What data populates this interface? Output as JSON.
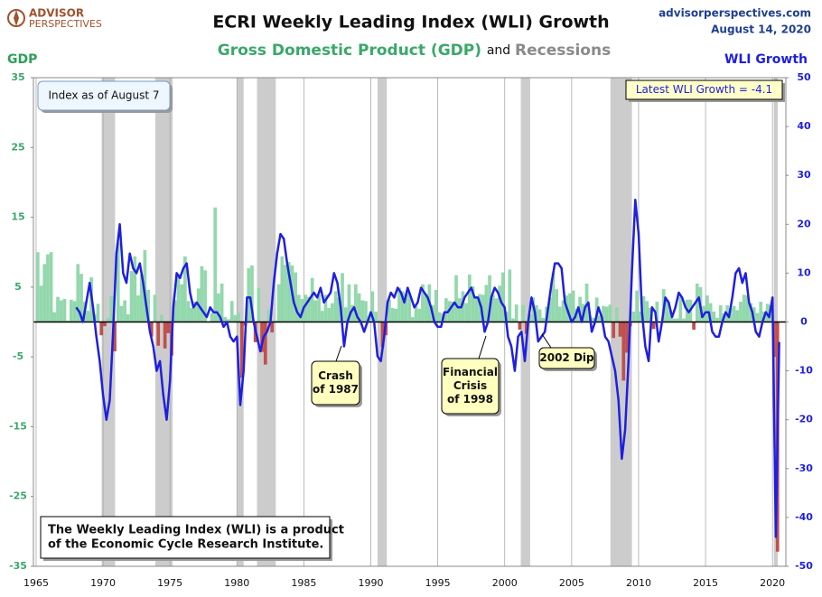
{
  "header": {
    "logo": [
      "ADVISOR",
      "PERSPECTIVES"
    ],
    "source": "advisorperspectives.com",
    "date": "August 14, 2020"
  },
  "chart_data": {
    "type": "bar-line",
    "title": "ECRI Weekly Leading Index (WLI) Growth",
    "subtitle": [
      "Gross Domestic Product (GDP)",
      "and",
      "Recessions"
    ],
    "y_label": "GDP",
    "y2_label": "WLI Growth",
    "xlim": [
      1964.8,
      2021
    ],
    "xticks": [
      1965,
      1970,
      1975,
      1980,
      1985,
      1990,
      1995,
      2000,
      2005,
      2010,
      2015,
      2020
    ],
    "ylim": [
      -35,
      35
    ],
    "yticks": [
      35,
      25,
      15,
      5,
      -5,
      -15,
      -25,
      -35
    ],
    "y2lim": [
      -50,
      50
    ],
    "y2ticks": [
      50,
      40,
      30,
      20,
      10,
      0,
      -10,
      -20,
      -30,
      -40,
      -50
    ],
    "grid": "x",
    "recession_color": "#cccccc",
    "recessions": [
      [
        1969.9,
        1970.9
      ],
      [
        1973.9,
        1975.2
      ],
      [
        1980.0,
        1980.5
      ],
      [
        1981.5,
        1982.9
      ],
      [
        1990.5,
        1991.2
      ],
      [
        2001.2,
        2001.9
      ],
      [
        2007.9,
        2009.5
      ],
      [
        2020.1,
        2020.4
      ]
    ],
    "x": [
      1965,
      1965.25,
      1965.5,
      1965.75,
      1966,
      1966.25,
      1966.5,
      1966.75,
      1967,
      1967.25,
      1967.5,
      1967.75,
      1968,
      1968.25,
      1968.5,
      1968.75,
      1969,
      1969.25,
      1969.5,
      1969.75,
      1970,
      1970.25,
      1970.5,
      1970.75,
      1971,
      1971.25,
      1971.5,
      1971.75,
      1972,
      1972.25,
      1972.5,
      1972.75,
      1973,
      1973.25,
      1973.5,
      1973.75,
      1974,
      1974.25,
      1974.5,
      1974.75,
      1975,
      1975.25,
      1975.5,
      1975.75,
      1976,
      1976.25,
      1976.5,
      1976.75,
      1977,
      1977.25,
      1977.5,
      1977.75,
      1978,
      1978.25,
      1978.5,
      1978.75,
      1979,
      1979.25,
      1979.5,
      1979.75,
      1980,
      1980.25,
      1980.5,
      1980.75,
      1981,
      1981.25,
      1981.5,
      1981.75,
      1982,
      1982.25,
      1982.5,
      1982.75,
      1983,
      1983.25,
      1983.5,
      1983.75,
      1984,
      1984.25,
      1984.5,
      1984.75,
      1985,
      1985.25,
      1985.5,
      1985.75,
      1986,
      1986.25,
      1986.5,
      1986.75,
      1987,
      1987.25,
      1987.5,
      1987.75,
      1988,
      1988.25,
      1988.5,
      1988.75,
      1989,
      1989.25,
      1989.5,
      1989.75,
      1990,
      1990.25,
      1990.5,
      1990.75,
      1991,
      1991.25,
      1991.5,
      1991.75,
      1992,
      1992.25,
      1992.5,
      1992.75,
      1993,
      1993.25,
      1993.5,
      1993.75,
      1994,
      1994.25,
      1994.5,
      1994.75,
      1995,
      1995.25,
      1995.5,
      1995.75,
      1996,
      1996.25,
      1996.5,
      1996.75,
      1997,
      1997.25,
      1997.5,
      1997.75,
      1998,
      1998.25,
      1998.5,
      1998.75,
      1999,
      1999.25,
      1999.5,
      1999.75,
      2000,
      2000.25,
      2000.5,
      2000.75,
      2001,
      2001.25,
      2001.5,
      2001.75,
      2002,
      2002.25,
      2002.5,
      2002.75,
      2003,
      2003.25,
      2003.5,
      2003.75,
      2004,
      2004.25,
      2004.5,
      2004.75,
      2005,
      2005.25,
      2005.5,
      2005.75,
      2006,
      2006.25,
      2006.5,
      2006.75,
      2007,
      2007.25,
      2007.5,
      2007.75,
      2008,
      2008.25,
      2008.5,
      2008.75,
      2009,
      2009.25,
      2009.5,
      2009.75,
      2010,
      2010.25,
      2010.5,
      2010.75,
      2011,
      2011.25,
      2011.5,
      2011.75,
      2012,
      2012.25,
      2012.5,
      2012.75,
      2013,
      2013.25,
      2013.5,
      2013.75,
      2014,
      2014.25,
      2014.5,
      2014.75,
      2015,
      2015.25,
      2015.5,
      2015.75,
      2016,
      2016.25,
      2016.5,
      2016.75,
      2017,
      2017.25,
      2017.5,
      2017.75,
      2018,
      2018.25,
      2018.5,
      2018.75,
      2019,
      2019.25,
      2019.5,
      2019.75,
      2020,
      2020.25,
      2020.5
    ],
    "series": [
      {
        "name": "GDP",
        "type": "bar",
        "color": "#93d8ac",
        "negative_color": "#c0504d",
        "values": [
          10.0,
          5.2,
          8.3,
          9.7,
          10.0,
          1.4,
          3.6,
          3.1,
          3.3,
          0.2,
          3.2,
          3.0,
          8.3,
          6.9,
          2.9,
          1.6,
          6.4,
          1.1,
          2.6,
          -1.9,
          -0.6,
          0.6,
          3.7,
          -4.2,
          11.3,
          2.3,
          3.1,
          1.1,
          7.3,
          9.4,
          3.8,
          6.8,
          10.3,
          4.6,
          -2.1,
          3.9,
          -3.4,
          1.0,
          -3.8,
          -1.6,
          -4.8,
          3.1,
          6.9,
          5.4,
          9.4,
          3.0,
          2.0,
          2.9,
          4.8,
          8.0,
          7.4,
          0.0,
          1.3,
          16.4,
          4.1,
          5.5,
          0.7,
          0.4,
          3.0,
          1.0,
          1.3,
          -8.0,
          -0.5,
          7.7,
          8.1,
          -2.9,
          4.9,
          -4.3,
          -6.1,
          1.8,
          -1.5,
          0.2,
          5.4,
          9.4,
          8.2,
          8.6,
          8.1,
          7.1,
          3.9,
          3.3,
          3.9,
          3.6,
          6.3,
          3.1,
          3.9,
          1.6,
          3.9,
          2.0,
          2.7,
          4.4,
          3.5,
          7.0,
          2.1,
          5.4,
          2.4,
          5.4,
          4.1,
          3.1,
          3.0,
          0.8,
          4.4,
          1.5,
          0.3,
          -3.6,
          -1.9,
          3.2,
          2.0,
          1.9,
          4.9,
          4.4,
          4.0,
          4.2,
          0.7,
          2.3,
          1.9,
          5.4,
          4.0,
          5.4,
          2.4,
          4.6,
          1.4,
          1.2,
          3.4,
          3.0,
          2.9,
          6.7,
          3.4,
          4.4,
          2.7,
          6.8,
          5.1,
          3.4,
          4.0,
          3.9,
          5.3,
          6.7,
          3.9,
          3.4,
          5.2,
          7.1,
          1.5,
          7.5,
          0.5,
          2.5,
          -1.1,
          2.4,
          -1.7,
          1.1,
          3.5,
          2.4,
          1.8,
          0.6,
          2.2,
          3.5,
          7.0,
          4.7,
          2.2,
          3.1,
          3.8,
          4.1,
          4.5,
          1.9,
          3.6,
          2.6,
          5.5,
          0.9,
          0.6,
          3.5,
          0.9,
          2.3,
          2.2,
          2.5,
          -2.3,
          2.1,
          -2.1,
          -8.4,
          -4.4,
          -0.6,
          1.5,
          4.5,
          1.5,
          3.7,
          3.0,
          2.0,
          -1.0,
          2.9,
          -0.1,
          4.7,
          3.2,
          1.7,
          0.5,
          0.5,
          3.6,
          0.5,
          3.2,
          3.2,
          -1.1,
          5.5,
          5.0,
          2.3,
          3.8,
          2.7,
          1.5,
          0.6,
          2.4,
          1.2,
          2.4,
          2.0,
          2.3,
          1.7,
          2.9,
          3.9,
          3.8,
          2.7,
          2.1,
          1.3,
          2.9,
          1.5,
          2.6,
          2.4,
          -5.0,
          -32.9,
          null
        ]
      },
      {
        "name": "WLI Growth",
        "type": "line",
        "axis": "y2",
        "color": "#1f1fe0",
        "values": [
          null,
          null,
          null,
          null,
          null,
          null,
          null,
          null,
          null,
          null,
          null,
          null,
          3,
          2,
          0,
          4,
          8,
          3,
          -3,
          -8,
          -15,
          -20,
          -16,
          -2,
          14,
          20,
          10,
          8,
          14,
          11,
          10,
          12,
          8,
          3,
          -2,
          -5,
          -10,
          -8,
          -15,
          -20,
          -12,
          3,
          10,
          9,
          11,
          12,
          6,
          3,
          4,
          3,
          2,
          1,
          3,
          2,
          2,
          1,
          -1,
          0,
          -3,
          -4,
          -3,
          -17,
          -10,
          5,
          5,
          0,
          -3,
          -6,
          -3,
          -2,
          0,
          8,
          14,
          18,
          17,
          12,
          8,
          4,
          2,
          1,
          3,
          4,
          5,
          6,
          5,
          7,
          4,
          5,
          6,
          10,
          8,
          3,
          -5,
          0,
          2,
          3,
          1,
          0,
          -2,
          0,
          2,
          0,
          -7,
          -8,
          -3,
          4,
          6,
          5,
          7,
          6,
          4,
          7,
          5,
          3,
          4,
          7,
          6,
          5,
          3,
          0,
          -1,
          -1,
          2,
          2,
          3,
          4,
          3,
          3,
          5,
          6,
          7,
          5,
          5,
          3,
          -2,
          0,
          5,
          7,
          6,
          4,
          3,
          -3,
          -5,
          -10,
          -3,
          -2,
          -8,
          0,
          5,
          2,
          -4,
          -3,
          -2,
          3,
          8,
          12,
          12,
          11,
          4,
          2,
          0,
          1,
          3,
          0,
          3,
          4,
          -2,
          0,
          3,
          1,
          -3,
          -4,
          -7,
          -10,
          -16,
          -28,
          -22,
          -8,
          10,
          25,
          18,
          2,
          -5,
          -8,
          3,
          2,
          -4,
          0,
          5,
          4,
          1,
          3,
          6,
          5,
          3,
          2,
          3,
          4,
          5,
          1,
          2,
          2,
          -2,
          -3,
          -3,
          0,
          2,
          1,
          5,
          10,
          11,
          8,
          10,
          4,
          2,
          -2,
          -3,
          0,
          2,
          1,
          5,
          -44,
          -4.1
        ]
      }
    ],
    "annotations": [
      {
        "text": [
          "Index as of August 7"
        ]
      },
      {
        "text": [
          "Latest WLI Growth = -4.1"
        ]
      },
      {
        "text": [
          "Crash",
          "of 1987"
        ]
      },
      {
        "text": [
          "Financial",
          "Crisis",
          "of 1998"
        ]
      },
      {
        "text": [
          "2002 Dip"
        ]
      },
      {
        "text": [
          "The Weekly Leading Index (WLI) is a product",
          "of the Economic Cycle Research Institute."
        ]
      }
    ]
  }
}
